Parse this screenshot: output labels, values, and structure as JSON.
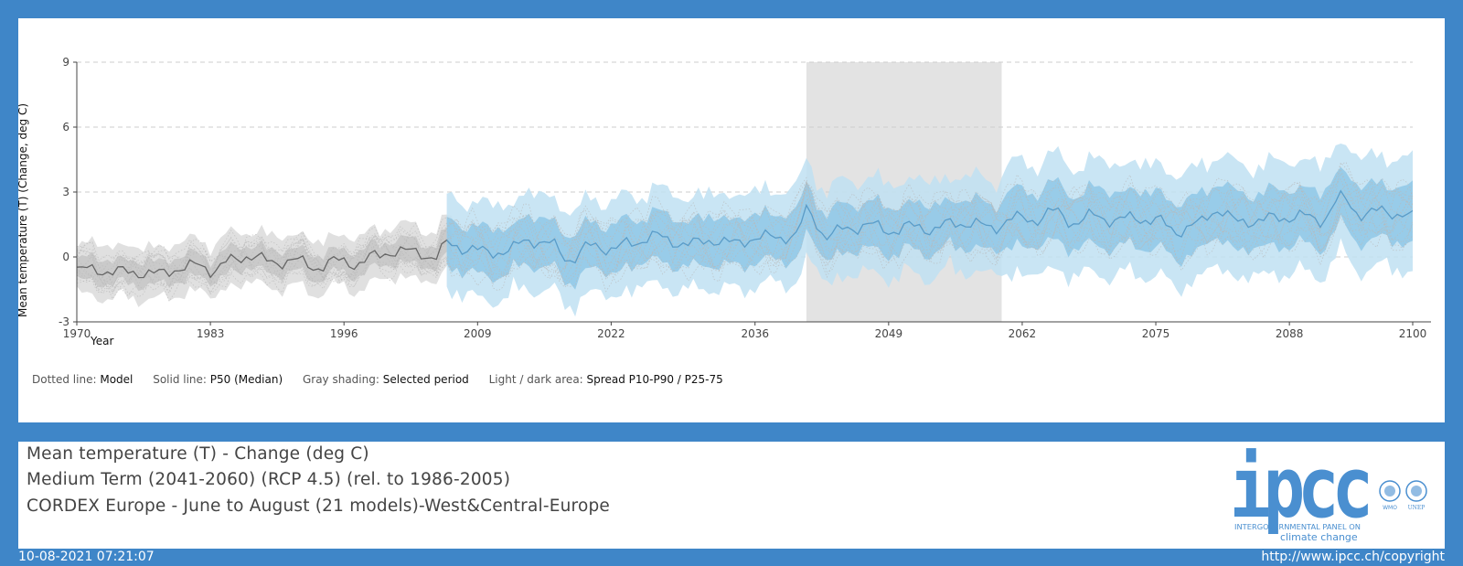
{
  "chart_data": {
    "type": "line",
    "title": "",
    "xlabel": "Year",
    "ylabel": "Mean temperature (T) (Change, deg C)",
    "xlim": [
      1970,
      2100
    ],
    "ylim": [
      -3,
      9
    ],
    "x_ticks": [
      "1970",
      "1983",
      "1996",
      "2009",
      "2022",
      "2036",
      "2049",
      "2062",
      "2075",
      "2088",
      "2100"
    ],
    "y_ticks": [
      "-3",
      "0",
      "3",
      "6",
      "9"
    ],
    "grid": "horizontal dashed",
    "selected_period": [
      2041,
      2060
    ],
    "historical_end": 2006,
    "median_points": [
      [
        1970,
        -0.6
      ],
      [
        1972,
        -0.6
      ],
      [
        1974,
        -0.7
      ],
      [
        1976,
        -0.7
      ],
      [
        1978,
        -0.8
      ],
      [
        1980,
        -0.5
      ],
      [
        1982,
        -0.4
      ],
      [
        1983,
        -0.6
      ],
      [
        1985,
        -0.2
      ],
      [
        1987,
        0.1
      ],
      [
        1989,
        -0.3
      ],
      [
        1991,
        -0.1
      ],
      [
        1993,
        -0.5
      ],
      [
        1995,
        -0.2
      ],
      [
        1997,
        -0.3
      ],
      [
        1999,
        0.0
      ],
      [
        2001,
        0.3
      ],
      [
        2003,
        0.2
      ],
      [
        2005,
        0.0
      ],
      [
        2006,
        0.6
      ],
      [
        2008,
        0.4
      ],
      [
        2010,
        0.2
      ],
      [
        2012,
        0.3
      ],
      [
        2014,
        0.8
      ],
      [
        2016,
        0.6
      ],
      [
        2018,
        -0.1
      ],
      [
        2020,
        0.5
      ],
      [
        2022,
        0.4
      ],
      [
        2024,
        0.6
      ],
      [
        2026,
        1.0
      ],
      [
        2028,
        0.7
      ],
      [
        2030,
        0.6
      ],
      [
        2032,
        0.8
      ],
      [
        2034,
        0.6
      ],
      [
        2036,
        0.9
      ],
      [
        2038,
        0.9
      ],
      [
        2040,
        1.0
      ],
      [
        2041,
        2.1
      ],
      [
        2043,
        1.0
      ],
      [
        2045,
        1.3
      ],
      [
        2047,
        1.5
      ],
      [
        2049,
        1.2
      ],
      [
        2051,
        1.4
      ],
      [
        2053,
        1.3
      ],
      [
        2055,
        1.5
      ],
      [
        2057,
        1.6
      ],
      [
        2059,
        1.3
      ],
      [
        2061,
        1.8
      ],
      [
        2063,
        1.7
      ],
      [
        2065,
        2.1
      ],
      [
        2067,
        1.6
      ],
      [
        2069,
        1.9
      ],
      [
        2071,
        1.7
      ],
      [
        2073,
        1.8
      ],
      [
        2075,
        1.7
      ],
      [
        2077,
        1.2
      ],
      [
        2079,
        1.5
      ],
      [
        2081,
        2.2
      ],
      [
        2083,
        1.6
      ],
      [
        2085,
        1.7
      ],
      [
        2087,
        1.8
      ],
      [
        2089,
        1.9
      ],
      [
        2091,
        1.7
      ],
      [
        2093,
        2.7
      ],
      [
        2095,
        2.0
      ],
      [
        2097,
        2.1
      ],
      [
        2099,
        2.0
      ],
      [
        2100,
        1.8
      ]
    ]
  },
  "legend": {
    "dotted_label": "Dotted line:",
    "dotted_value": "Model",
    "solid_label": "Solid line:",
    "solid_value": "P50 (Median)",
    "gray_label": "Gray shading:",
    "gray_value": "Selected period",
    "area_label": "Light / dark area:",
    "area_value": "Spread P10-P90 / P25-75"
  },
  "info": {
    "line1": "Mean temperature (T) - Change (deg C)",
    "line2": "Medium Term (2041-2060) (RCP 4.5) (rel. to 1986-2005)",
    "line3": "CORDEX Europe - June to August (21 models)-West&Central-Europe"
  },
  "logo": {
    "text": "ipcc",
    "tagline1": "INTERGOVERNMENTAL PANEL ON",
    "tagline2": "climate change",
    "wmo": "WMO",
    "unep": "UNEP"
  },
  "footer": {
    "date": "10-08-2021 07:21:07",
    "url": "http://www.ipcc.ch/copyright"
  },
  "colors": {
    "frame": "#3f86c8",
    "historical": "#999999",
    "future_light": "#bfe0f2",
    "future_dark": "#8cc6e6",
    "median": "#5a9cc8",
    "selected": "#e3e3e3",
    "logo": "#4a8fd0"
  }
}
